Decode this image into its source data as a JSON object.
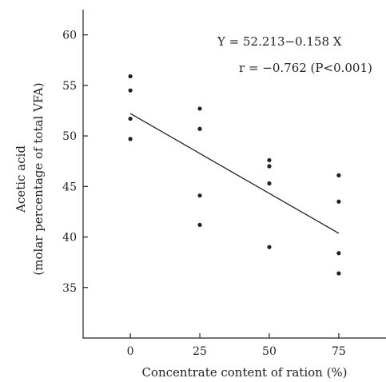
{
  "chart_data": {
    "type": "scatter",
    "xlabel": "Concentrate content of ration (%)",
    "ylabel_line1": "Acetic acid",
    "ylabel_line2": "(molar percentage of total VFA)",
    "xlim": [
      -17,
      92
    ],
    "ylim": [
      30,
      62.5
    ],
    "x_ticks": [
      0,
      25,
      50,
      75
    ],
    "y_ticks": [
      35,
      40,
      45,
      50,
      55,
      60
    ],
    "points": [
      {
        "x": 0,
        "y": 55.9
      },
      {
        "x": 0,
        "y": 54.5
      },
      {
        "x": 0,
        "y": 51.7
      },
      {
        "x": 0,
        "y": 49.7
      },
      {
        "x": 25,
        "y": 52.7
      },
      {
        "x": 25,
        "y": 50.7
      },
      {
        "x": 25,
        "y": 44.1
      },
      {
        "x": 25,
        "y": 41.2
      },
      {
        "x": 50,
        "y": 47.6
      },
      {
        "x": 50,
        "y": 47.0
      },
      {
        "x": 50,
        "y": 45.3
      },
      {
        "x": 50,
        "y": 39.0
      },
      {
        "x": 75,
        "y": 46.1
      },
      {
        "x": 75,
        "y": 43.5
      },
      {
        "x": 75,
        "y": 38.4
      },
      {
        "x": 75,
        "y": 36.4
      }
    ],
    "regression": {
      "intercept": 52.213,
      "slope": -0.158,
      "x_range": [
        0,
        75
      ]
    },
    "annotations": [
      {
        "text": "Y = 52.213−0.158 X"
      },
      {
        "text": "r = −0.762 (P<0.001)"
      }
    ]
  }
}
